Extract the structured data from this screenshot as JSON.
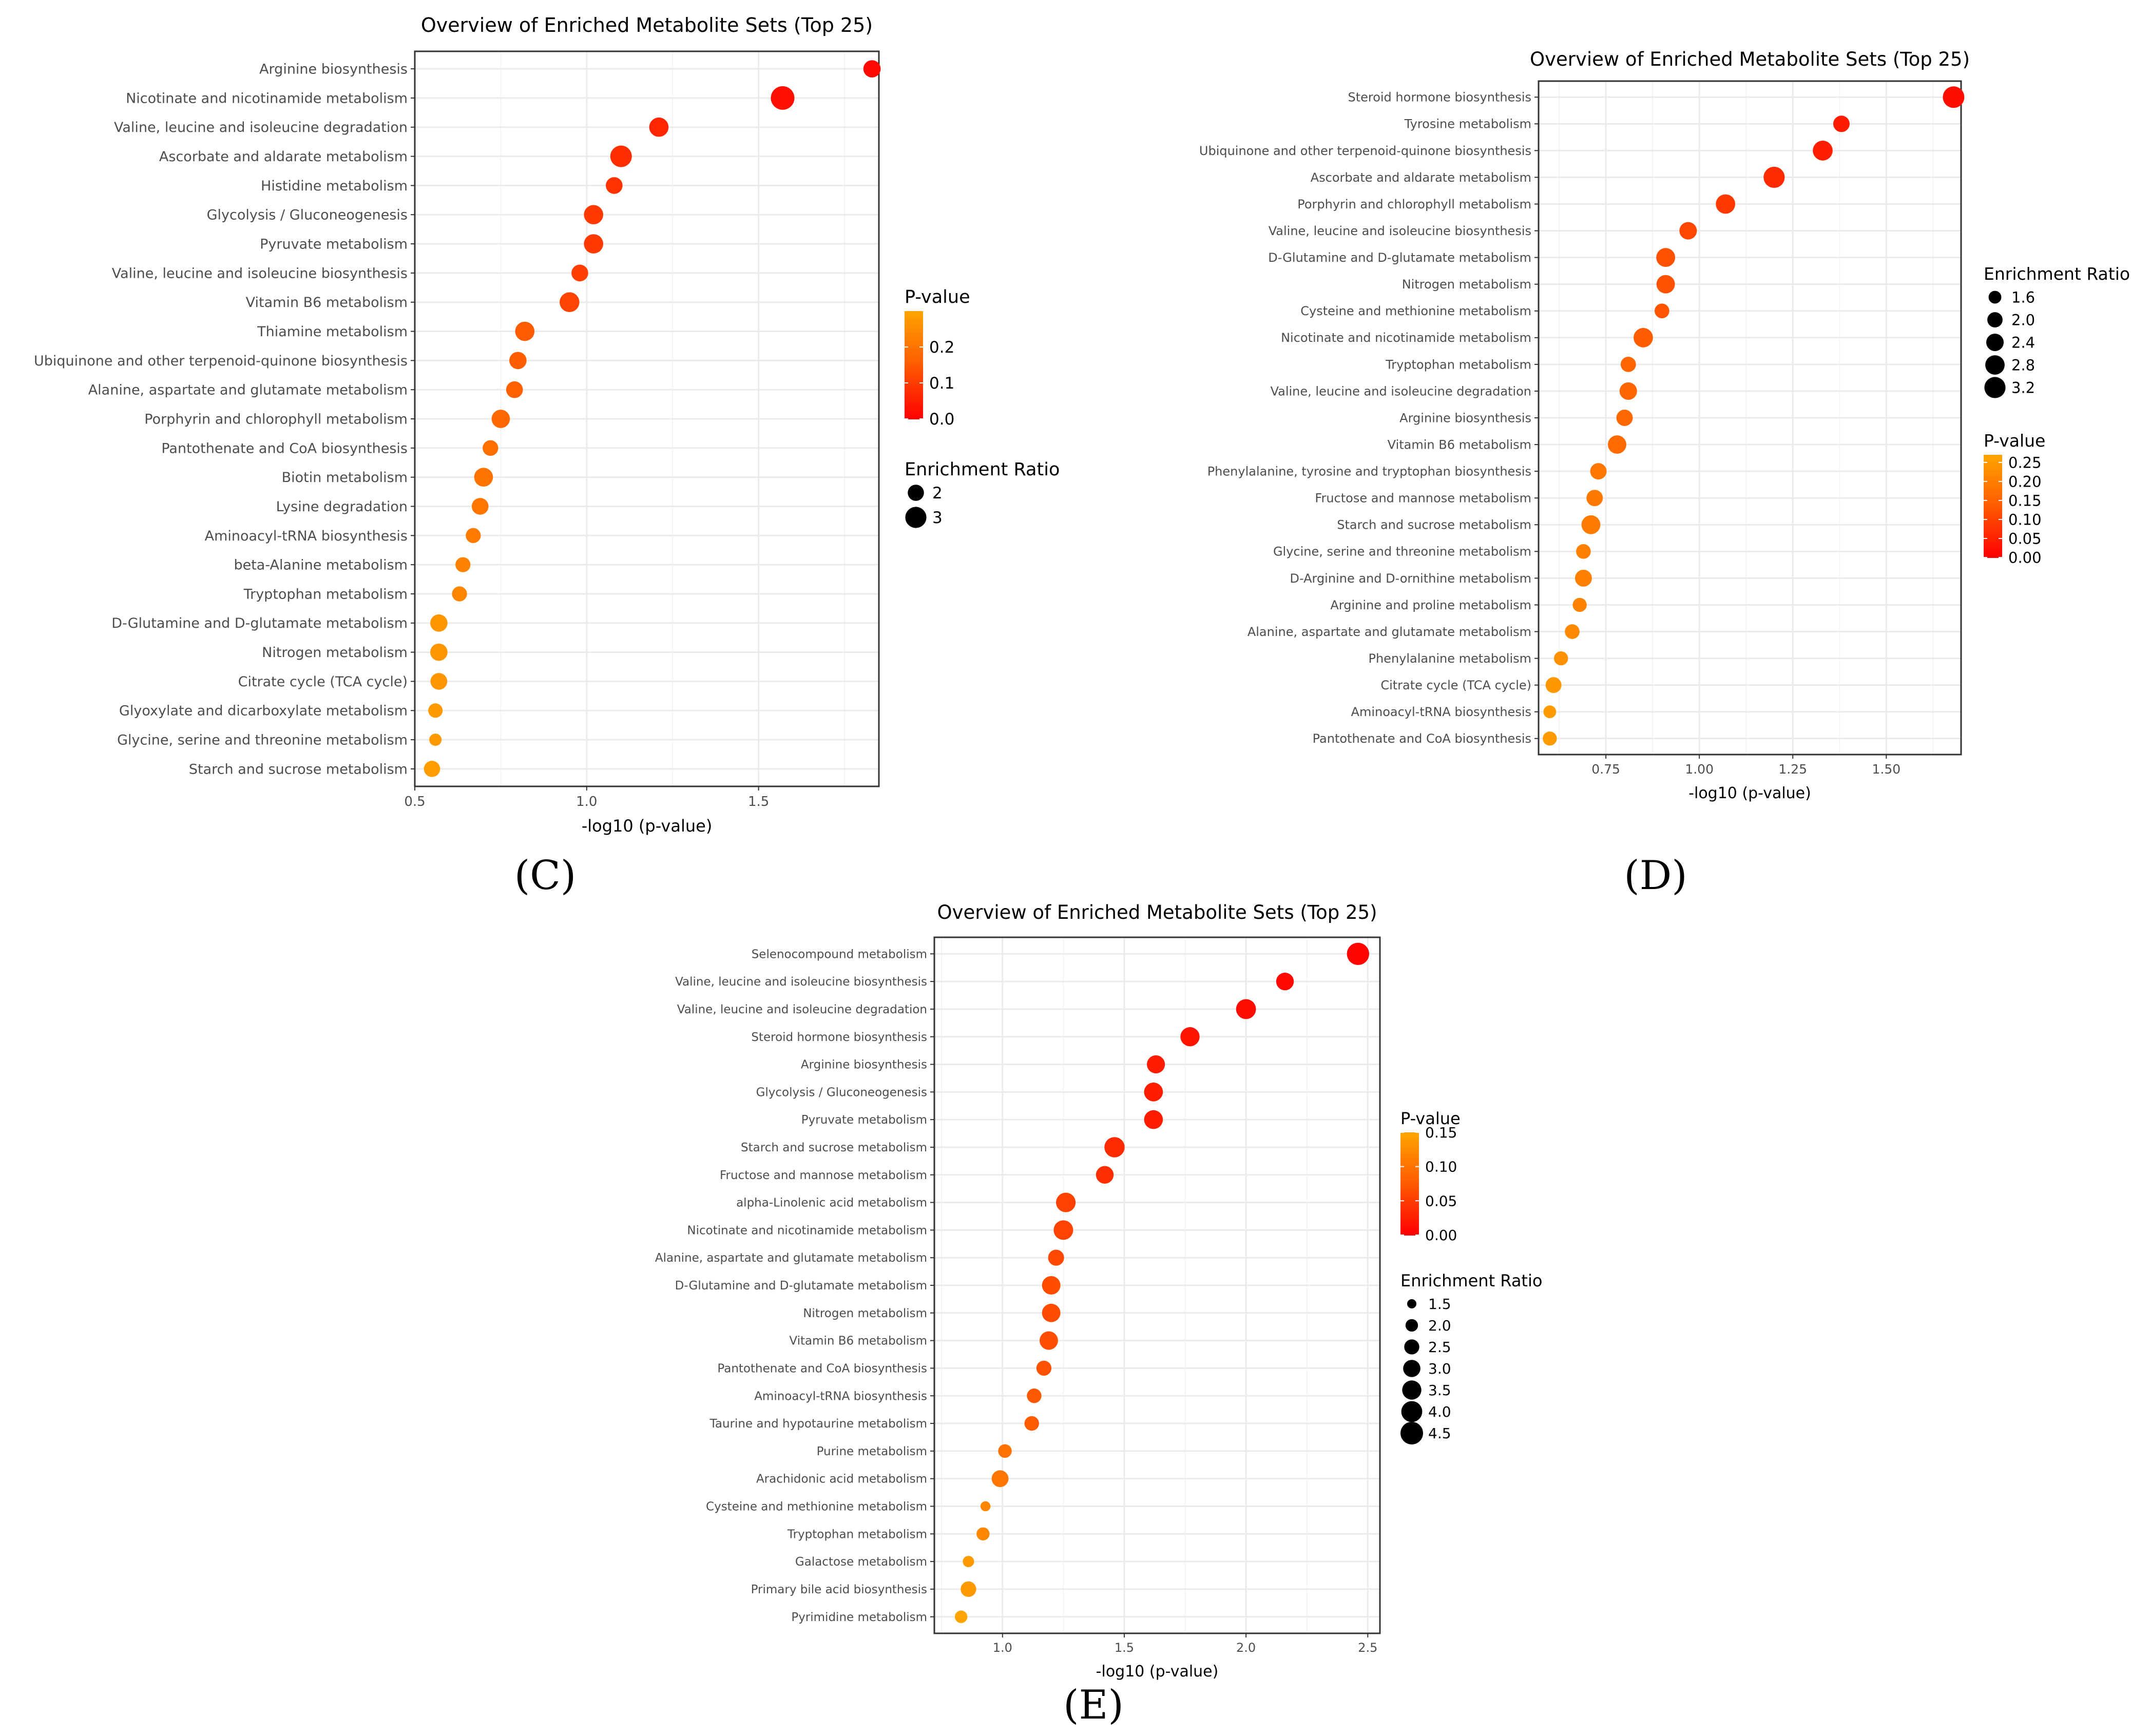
{
  "chart_data": [
    {
      "type": "scatter",
      "panel": "(C)",
      "title": "Overview of Enriched Metabolite Sets (Top 25)",
      "xlabel": "-log10 (p-value)",
      "xlim": [
        0.5,
        1.85
      ],
      "xticks": [
        "0.5",
        "1.0",
        "1.5"
      ],
      "categories": [
        "Arginine biosynthesis",
        "Nicotinate and nicotinamide metabolism",
        "Valine, leucine and isoleucine degradation",
        "Ascorbate and aldarate metabolism",
        "Histidine metabolism",
        "Glycolysis / Gluconeogenesis",
        "Pyruvate metabolism",
        "Valine, leucine and isoleucine biosynthesis",
        "Vitamin B6 metabolism",
        "Thiamine metabolism",
        "Ubiquinone and other terpenoid-quinone biosynthesis",
        "Alanine, aspartate and glutamate metabolism",
        "Porphyrin and chlorophyll metabolism",
        "Pantothenate and CoA biosynthesis",
        "Biotin metabolism",
        "Lysine degradation",
        "Aminoacyl-tRNA biosynthesis",
        "beta-Alanine metabolism",
        "Tryptophan metabolism",
        "D-Glutamine and D-glutamate metabolism",
        "Nitrogen metabolism",
        "Citrate cycle (TCA cycle)",
        "Glyoxylate and dicarboxylate metabolism",
        "Glycine, serine and threonine metabolism",
        "Starch and sucrose metabolism"
      ],
      "x": [
        1.83,
        1.57,
        1.21,
        1.1,
        1.08,
        1.02,
        1.02,
        0.98,
        0.95,
        0.82,
        0.8,
        0.79,
        0.75,
        0.72,
        0.7,
        0.69,
        0.67,
        0.64,
        0.63,
        0.57,
        0.57,
        0.57,
        0.56,
        0.56,
        0.55
      ],
      "enrichment_ratio": [
        2.2,
        3.6,
        2.6,
        3.1,
        2.1,
        2.6,
        2.6,
        2.1,
        2.7,
        2.6,
        2.2,
        2.1,
        2.4,
        1.9,
        2.5,
        2.1,
        1.8,
        1.8,
        1.8,
        2.2,
        2.2,
        2.1,
        1.7,
        1.4,
        2.0
      ],
      "pvalue": [
        0.015,
        0.027,
        0.062,
        0.079,
        0.083,
        0.095,
        0.095,
        0.105,
        0.112,
        0.151,
        0.158,
        0.162,
        0.178,
        0.191,
        0.2,
        0.204,
        0.214,
        0.229,
        0.234,
        0.269,
        0.269,
        0.269,
        0.275,
        0.275,
        0.282
      ],
      "pvalue_range": [
        0,
        0.3
      ],
      "size_range": [
        1.4,
        3.6
      ],
      "legend_pvalue": {
        "title": "P-value",
        "ticks": [
          {
            "value": 0.2,
            "label": "0.2"
          },
          {
            "value": 0.1,
            "label": "0.1"
          },
          {
            "value": 0.0,
            "label": "0.0"
          }
        ]
      },
      "legend_size": {
        "title": "Enrichment Ratio",
        "entries": [
          {
            "value": 2,
            "label": "2"
          },
          {
            "value": 3,
            "label": "3"
          }
        ]
      }
    },
    {
      "type": "scatter",
      "panel": "(D)",
      "title": "Overview of Enriched Metabolite Sets (Top 25)",
      "xlabel": "-log10 (p-value)",
      "xlim": [
        0.57,
        1.7
      ],
      "xticks": [
        "0.75",
        "1.00",
        "1.25",
        "1.50"
      ],
      "categories": [
        "Steroid hormone biosynthesis",
        "Tyrosine metabolism",
        "Ubiquinone and other terpenoid-quinone biosynthesis",
        "Ascorbate and aldarate metabolism",
        "Porphyrin and chlorophyll metabolism",
        "Valine, leucine and isoleucine biosynthesis",
        "D-Glutamine and D-glutamate metabolism",
        "Nitrogen metabolism",
        "Cysteine and methionine metabolism",
        "Nicotinate and nicotinamide metabolism",
        "Tryptophan metabolism",
        "Valine, leucine and isoleucine degradation",
        "Arginine biosynthesis",
        "Vitamin B6 metabolism",
        "Phenylalanine, tyrosine and tryptophan biosynthesis",
        "Fructose and mannose metabolism",
        "Starch and sucrose metabolism",
        "Glycine, serine and threonine metabolism",
        "D-Arginine and D-ornithine metabolism",
        "Arginine and proline metabolism",
        "Alanine, aspartate and glutamate metabolism",
        "Phenylalanine metabolism",
        "Citrate cycle (TCA cycle)",
        "Aminoacyl-tRNA biosynthesis",
        "Pantothenate and CoA biosynthesis"
      ],
      "x": [
        1.68,
        1.38,
        1.33,
        1.2,
        1.07,
        0.97,
        0.91,
        0.91,
        0.9,
        0.85,
        0.81,
        0.81,
        0.8,
        0.78,
        0.73,
        0.72,
        0.71,
        0.69,
        0.69,
        0.68,
        0.66,
        0.63,
        0.61,
        0.6,
        0.6
      ],
      "enrichment_ratio": [
        3.3,
        2.2,
        2.9,
        3.2,
        2.8,
        2.4,
        2.7,
        2.6,
        1.9,
        2.8,
        2.0,
        2.4,
        2.2,
        2.6,
        2.2,
        2.2,
        2.7,
        1.9,
        2.3,
        1.8,
        1.9,
        1.8,
        2.1,
        1.6,
        1.8
      ],
      "pvalue": [
        0.021,
        0.042,
        0.047,
        0.063,
        0.085,
        0.107,
        0.123,
        0.123,
        0.126,
        0.141,
        0.155,
        0.155,
        0.158,
        0.166,
        0.186,
        0.191,
        0.195,
        0.204,
        0.204,
        0.209,
        0.219,
        0.234,
        0.245,
        0.251,
        0.251
      ],
      "pvalue_range": [
        0,
        0.27
      ],
      "size_range": [
        1.4,
        3.3
      ],
      "legend_size": {
        "title": "Enrichment Ratio",
        "entries": [
          {
            "value": 1.6,
            "label": "1.6"
          },
          {
            "value": 2.0,
            "label": "2.0"
          },
          {
            "value": 2.4,
            "label": "2.4"
          },
          {
            "value": 2.8,
            "label": "2.8"
          },
          {
            "value": 3.2,
            "label": "3.2"
          }
        ]
      },
      "legend_pvalue": {
        "title": "P-value",
        "ticks": [
          {
            "value": 0.25,
            "label": "0.25"
          },
          {
            "value": 0.2,
            "label": "0.20"
          },
          {
            "value": 0.15,
            "label": "0.15"
          },
          {
            "value": 0.1,
            "label": "0.10"
          },
          {
            "value": 0.05,
            "label": "0.05"
          },
          {
            "value": 0.0,
            "label": "0.00"
          }
        ]
      }
    },
    {
      "type": "scatter",
      "panel": "(E)",
      "title": "Overview of Enriched Metabolite Sets (Top 25)",
      "xlabel": "-log10 (p-value)",
      "xlim": [
        0.72,
        2.55
      ],
      "xticks": [
        "1.0",
        "1.5",
        "2.0",
        "2.5"
      ],
      "categories": [
        "Selenocompound metabolism",
        "Valine, leucine and isoleucine biosynthesis",
        "Valine, leucine and isoleucine degradation",
        "Steroid hormone biosynthesis",
        "Arginine biosynthesis",
        "Glycolysis / Gluconeogenesis",
        "Pyruvate metabolism",
        "Starch and sucrose metabolism",
        "Fructose and mannose metabolism",
        "alpha-Linolenic acid metabolism",
        "Nicotinate and nicotinamide metabolism",
        "Alanine, aspartate and glutamate metabolism",
        "D-Glutamine and D-glutamate metabolism",
        "Nitrogen metabolism",
        "Vitamin B6 metabolism",
        "Pantothenate and CoA biosynthesis",
        "Aminoacyl-tRNA biosynthesis",
        "Taurine and hypotaurine metabolism",
        "Purine metabolism",
        "Arachidonic acid metabolism",
        "Cysteine and methionine metabolism",
        "Tryptophan metabolism",
        "Galactose metabolism",
        "Primary bile acid biosynthesis",
        "Pyrimidine metabolism"
      ],
      "x": [
        2.46,
        2.16,
        2.0,
        1.77,
        1.63,
        1.62,
        1.62,
        1.46,
        1.42,
        1.26,
        1.25,
        1.22,
        1.2,
        1.2,
        1.19,
        1.17,
        1.13,
        1.12,
        1.01,
        0.99,
        0.93,
        0.92,
        0.86,
        0.86,
        0.83
      ],
      "enrichment_ratio": [
        4.4,
        3.1,
        3.7,
        3.5,
        3.2,
        3.4,
        3.4,
        3.8,
        3.1,
        3.6,
        3.6,
        2.7,
        3.3,
        3.3,
        3.3,
        2.5,
        2.4,
        2.4,
        2.2,
        2.9,
        1.6,
        2.1,
        1.8,
        2.6,
        2.0
      ],
      "pvalue": [
        0.003,
        0.007,
        0.01,
        0.017,
        0.023,
        0.024,
        0.024,
        0.035,
        0.038,
        0.055,
        0.056,
        0.06,
        0.063,
        0.063,
        0.065,
        0.068,
        0.074,
        0.076,
        0.098,
        0.102,
        0.117,
        0.12,
        0.138,
        0.138,
        0.148
      ],
      "pvalue_range": [
        0,
        0.15
      ],
      "size_range": [
        1.5,
        4.5
      ],
      "legend_pvalue": {
        "title": "P-value",
        "ticks": [
          {
            "value": 0.15,
            "label": "0.15"
          },
          {
            "value": 0.1,
            "label": "0.10"
          },
          {
            "value": 0.05,
            "label": "0.05"
          },
          {
            "value": 0.0,
            "label": "0.00"
          }
        ]
      },
      "legend_size": {
        "title": "Enrichment Ratio",
        "entries": [
          {
            "value": 1.5,
            "label": "1.5"
          },
          {
            "value": 2.0,
            "label": "2.0"
          },
          {
            "value": 2.5,
            "label": "2.5"
          },
          {
            "value": 3.0,
            "label": "3.0"
          },
          {
            "value": 3.5,
            "label": "3.5"
          },
          {
            "value": 4.0,
            "label": "4.0"
          },
          {
            "value": 4.5,
            "label": "4.5"
          }
        ]
      }
    }
  ],
  "colors": {
    "low_pvalue": "#ff0000",
    "mid_pvalue": "#ff5a00",
    "high_pvalue": "#ffa500",
    "panel_border": "#333333",
    "grid": "#ebebeb",
    "axis_text": "#4d4d4d",
    "title_text": "#000000"
  }
}
